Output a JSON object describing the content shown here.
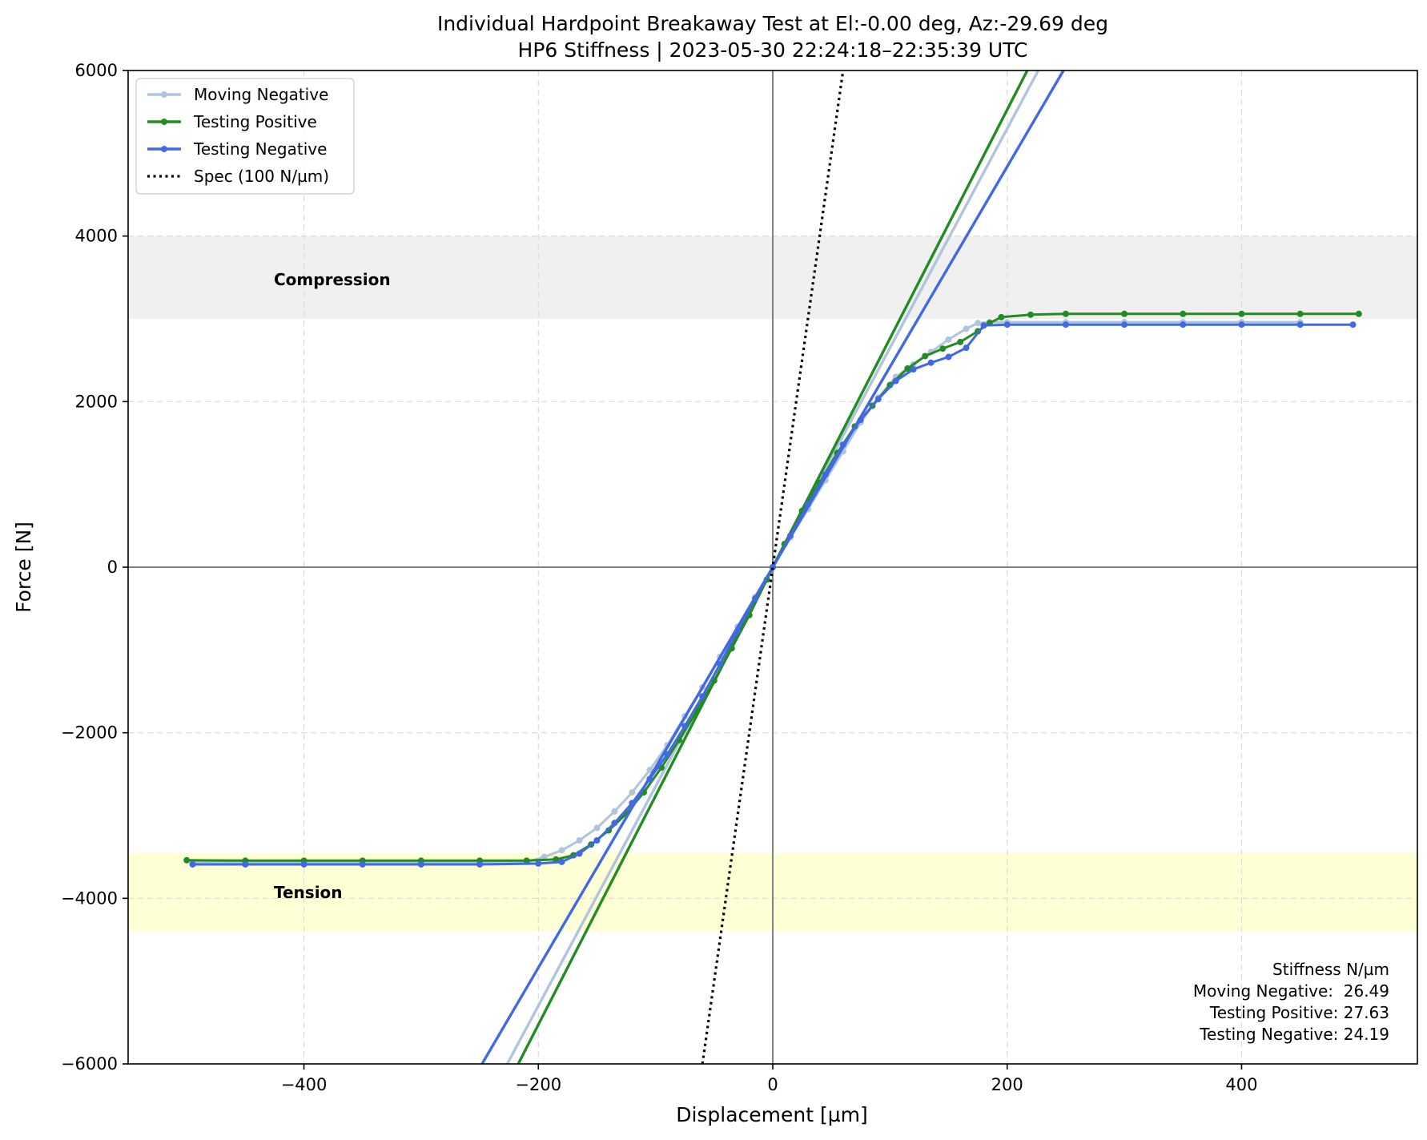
{
  "chart_data": {
    "type": "line",
    "title": "Individual Hardpoint Breakaway Test at El:-0.00 deg, Az:-29.69 deg",
    "subtitle": "HP6 Stiffness | 2023-05-30 22:24:18–22:35:39 UTC",
    "xlabel": "Displacement [µm]",
    "ylabel": "Force [N]",
    "xlim": [
      -550,
      550
    ],
    "ylim": [
      -6000,
      6000
    ],
    "xticks": [
      -400,
      -200,
      0,
      200,
      400
    ],
    "yticks": [
      -6000,
      -4000,
      -2000,
      0,
      2000,
      4000,
      6000
    ],
    "xtick_labels": [
      "−400",
      "−200",
      "0",
      "200",
      "400"
    ],
    "ytick_labels": [
      "−6000",
      "−4000",
      "−2000",
      "0",
      "2000",
      "4000",
      "6000"
    ],
    "grid": true,
    "legend_position": "top-left",
    "bands": [
      {
        "label": "Compression",
        "y0": 3000,
        "y1": 4000,
        "color": "#f0f0f0"
      },
      {
        "label": "Tension",
        "y0": -4400,
        "y1": -3450,
        "color": "#ffffd6"
      }
    ],
    "series": [
      {
        "name": "Moving Negative",
        "color": "#b0c4de",
        "x": [
          -495,
          -450,
          -400,
          -350,
          -300,
          -250,
          -210,
          -195,
          -180,
          -165,
          -150,
          -135,
          -120,
          -105,
          -90,
          -75,
          -60,
          -45,
          -30,
          -15,
          0,
          15,
          30,
          45,
          60,
          75,
          90,
          105,
          120,
          135,
          150,
          165,
          175,
          185,
          200,
          250,
          300,
          350,
          400,
          450
        ],
        "y": [
          -3570,
          -3570,
          -3570,
          -3570,
          -3570,
          -3570,
          -3560,
          -3500,
          -3420,
          -3300,
          -3150,
          -2950,
          -2720,
          -2450,
          -2150,
          -1800,
          -1450,
          -1080,
          -720,
          -360,
          0,
          360,
          700,
          1050,
          1400,
          1750,
          2050,
          2300,
          2450,
          2600,
          2750,
          2880,
          2950,
          2960,
          2960,
          2960,
          2960,
          2960,
          2960,
          2960
        ],
        "fit_stiffness": 26.49
      },
      {
        "name": "Testing Positive",
        "color": "#228b22",
        "x": [
          -500,
          -450,
          -400,
          -350,
          -300,
          -250,
          -210,
          -185,
          -170,
          -155,
          -140,
          -125,
          -110,
          -95,
          -80,
          -65,
          -50,
          -35,
          -20,
          -5,
          0,
          10,
          25,
          40,
          55,
          70,
          85,
          100,
          115,
          130,
          145,
          160,
          175,
          185,
          195,
          220,
          250,
          300,
          350,
          400,
          450,
          500
        ],
        "y": [
          -3540,
          -3545,
          -3545,
          -3545,
          -3545,
          -3545,
          -3545,
          -3530,
          -3480,
          -3350,
          -3180,
          -2980,
          -2720,
          -2420,
          -2090,
          -1740,
          -1370,
          -980,
          -580,
          -150,
          0,
          280,
          680,
          1020,
          1380,
          1700,
          1950,
          2200,
          2400,
          2550,
          2640,
          2720,
          2850,
          2950,
          3020,
          3050,
          3060,
          3060,
          3060,
          3060,
          3060,
          3060
        ],
        "fit_stiffness": 27.63
      },
      {
        "name": "Testing Negative",
        "color": "#4169e1",
        "x": [
          -495,
          -450,
          -400,
          -350,
          -300,
          -250,
          -200,
          -180,
          -165,
          -150,
          -135,
          -120,
          -105,
          -90,
          -75,
          -60,
          -45,
          -30,
          -15,
          0,
          15,
          30,
          45,
          60,
          75,
          90,
          105,
          120,
          135,
          150,
          165,
          180,
          200,
          250,
          300,
          350,
          400,
          450,
          495
        ],
        "y": [
          -3590,
          -3590,
          -3590,
          -3590,
          -3590,
          -3590,
          -3580,
          -3560,
          -3460,
          -3300,
          -3090,
          -2850,
          -2560,
          -2260,
          -1920,
          -1560,
          -1170,
          -770,
          -380,
          0,
          380,
          760,
          1120,
          1480,
          1780,
          2030,
          2250,
          2390,
          2470,
          2540,
          2650,
          2920,
          2930,
          2930,
          2930,
          2930,
          2930,
          2930,
          2930
        ],
        "fit_stiffness": 24.19
      },
      {
        "name": "Spec (100 N/µm)",
        "color": "#000000",
        "style": "dotted",
        "slope": 100
      }
    ],
    "stiffness_box": {
      "header": "Stiffness N/µm",
      "lines": [
        "Moving Negative:  26.49",
        "Testing Positive: 27.63",
        "Testing Negative: 24.19"
      ]
    }
  }
}
